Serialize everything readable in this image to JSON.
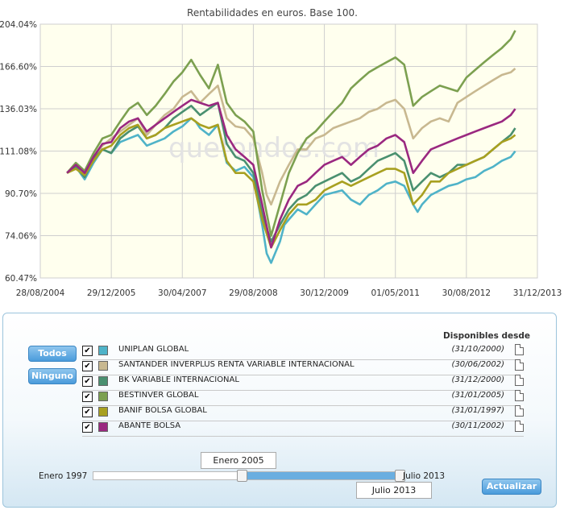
{
  "chart_data": {
    "type": "line",
    "title": "Rentabilidades en euros. Base 100.",
    "watermark": "quefondos.com",
    "xlabel": "",
    "ylabel": "",
    "x_ticks": [
      "28/08/2004",
      "29/12/2005",
      "30/04/2007",
      "29/08/2008",
      "30/12/2009",
      "01/05/2011",
      "30/08/2012",
      "31/12/2013"
    ],
    "x_tick_positions": [
      0,
      16,
      32,
      48,
      64,
      80,
      96,
      112
    ],
    "y_ticks": [
      "60.47%",
      "74.06%",
      "90.70%",
      "111.08%",
      "136.03%",
      "166.60%",
      "204.04%"
    ],
    "ylim": [
      60.47,
      204.04
    ],
    "y_scale": "log",
    "xlim": [
      0,
      112
    ],
    "x_unit": "months since 28/08/2004",
    "grid": true,
    "background": "#ffffee",
    "series": [
      {
        "name": "UNIPLAN GLOBAL",
        "color": "#4fb3c8",
        "x": [
          6,
          8,
          10,
          12,
          14,
          16,
          18,
          20,
          22,
          24,
          26,
          28,
          30,
          32,
          34,
          35,
          36,
          38,
          40,
          42,
          44,
          46,
          48,
          50,
          51,
          52,
          54,
          55,
          56,
          58,
          60,
          62,
          64,
          66,
          68,
          70,
          72,
          74,
          76,
          78,
          80,
          82,
          84,
          85,
          86,
          88,
          90,
          92,
          94,
          96,
          98,
          100,
          102,
          104,
          106,
          107
        ],
        "values": [
          100,
          103,
          97,
          105,
          112,
          110,
          116,
          118,
          120,
          114,
          116,
          118,
          122,
          125,
          130,
          128,
          124,
          120,
          126,
          105,
          101,
          103,
          98,
          78,
          68,
          65,
          72,
          78,
          80,
          84,
          82,
          86,
          90,
          91,
          92,
          88,
          86,
          90,
          92,
          95,
          96,
          94,
          86,
          83,
          86,
          90,
          92,
          94,
          95,
          97,
          98,
          101,
          103,
          106,
          108,
          111
        ]
      },
      {
        "name": "SANTANDER INVERPLUS RENTA VARIABLE INTERNACIONAL",
        "color": "#c8b890",
        "x": [
          6,
          8,
          10,
          12,
          14,
          16,
          18,
          20,
          22,
          24,
          26,
          28,
          30,
          32,
          34,
          36,
          38,
          40,
          42,
          44,
          46,
          48,
          50,
          51,
          52,
          54,
          56,
          58,
          60,
          62,
          64,
          66,
          68,
          70,
          72,
          74,
          76,
          78,
          80,
          82,
          84,
          86,
          88,
          90,
          92,
          94,
          96,
          98,
          100,
          102,
          104,
          106,
          107
        ],
        "values": [
          100,
          104,
          100,
          108,
          114,
          118,
          122,
          126,
          130,
          120,
          126,
          132,
          136,
          144,
          148,
          140,
          146,
          152,
          130,
          125,
          124,
          118,
          100,
          90,
          86,
          96,
          104,
          112,
          112,
          118,
          120,
          124,
          126,
          128,
          130,
          134,
          136,
          140,
          142,
          136,
          118,
          124,
          128,
          130,
          128,
          140,
          144,
          148,
          152,
          156,
          160,
          162,
          165
        ]
      },
      {
        "name": "BK VARIABLE INTERNACIONAL",
        "color": "#4a9070",
        "x": [
          6,
          8,
          10,
          12,
          14,
          16,
          18,
          20,
          22,
          24,
          26,
          28,
          30,
          32,
          34,
          36,
          38,
          40,
          42,
          44,
          46,
          48,
          50,
          52,
          54,
          56,
          58,
          60,
          62,
          64,
          66,
          68,
          70,
          72,
          74,
          76,
          78,
          80,
          82,
          84,
          86,
          88,
          90,
          92,
          94,
          96,
          98,
          100,
          102,
          104,
          106,
          107
        ],
        "values": [
          100,
          103,
          98,
          107,
          112,
          110,
          118,
          122,
          125,
          118,
          120,
          124,
          130,
          134,
          138,
          132,
          136,
          140,
          115,
          108,
          106,
          100,
          82,
          72,
          78,
          84,
          88,
          90,
          94,
          96,
          98,
          100,
          96,
          98,
          102,
          106,
          108,
          110,
          106,
          92,
          96,
          100,
          98,
          100,
          104,
          104,
          106,
          108,
          112,
          116,
          120,
          124
        ]
      },
      {
        "name": "BESTINVER GLOBAL",
        "color": "#7ca050",
        "x": [
          6,
          8,
          10,
          12,
          14,
          16,
          18,
          20,
          22,
          24,
          26,
          28,
          30,
          32,
          34,
          36,
          38,
          40,
          42,
          44,
          46,
          48,
          50,
          52,
          54,
          56,
          58,
          60,
          62,
          64,
          66,
          68,
          70,
          72,
          74,
          76,
          78,
          80,
          82,
          84,
          86,
          88,
          90,
          92,
          94,
          96,
          98,
          100,
          102,
          104,
          106,
          107
        ],
        "values": [
          100,
          105,
          101,
          110,
          118,
          120,
          128,
          136,
          140,
          132,
          138,
          146,
          155,
          162,
          172,
          160,
          150,
          168,
          140,
          132,
          128,
          122,
          92,
          74,
          86,
          100,
          110,
          118,
          122,
          128,
          134,
          140,
          150,
          156,
          162,
          166,
          170,
          174,
          168,
          138,
          144,
          148,
          152,
          150,
          148,
          158,
          164,
          170,
          176,
          182,
          190,
          198
        ]
      },
      {
        "name": "BANIF BOLSA GLOBAL",
        "color": "#a8a020",
        "x": [
          6,
          8,
          10,
          12,
          14,
          16,
          18,
          20,
          22,
          24,
          26,
          28,
          30,
          32,
          34,
          36,
          38,
          40,
          42,
          44,
          46,
          48,
          50,
          52,
          54,
          56,
          58,
          60,
          62,
          64,
          66,
          68,
          70,
          72,
          74,
          76,
          78,
          80,
          82,
          84,
          86,
          88,
          90,
          92,
          94,
          96,
          98,
          100,
          102,
          104,
          106,
          107
        ],
        "values": [
          100,
          102,
          99,
          106,
          112,
          114,
          120,
          124,
          126,
          118,
          120,
          124,
          126,
          128,
          130,
          126,
          124,
          126,
          106,
          100,
          100,
          96,
          80,
          70,
          76,
          82,
          86,
          86,
          88,
          92,
          94,
          96,
          94,
          96,
          98,
          100,
          102,
          102,
          100,
          86,
          90,
          96,
          96,
          100,
          102,
          104,
          106,
          108,
          112,
          116,
          118,
          120
        ]
      },
      {
        "name": "ABANTE BOLSA",
        "color": "#9a2880",
        "x": [
          6,
          8,
          10,
          12,
          14,
          16,
          18,
          20,
          22,
          24,
          26,
          28,
          30,
          32,
          34,
          36,
          38,
          40,
          42,
          44,
          46,
          48,
          50,
          52,
          54,
          56,
          58,
          60,
          62,
          64,
          66,
          68,
          70,
          72,
          74,
          76,
          78,
          80,
          82,
          84,
          86,
          88,
          90,
          92,
          94,
          96,
          98,
          100,
          102,
          104,
          106,
          107
        ],
        "values": [
          100,
          104,
          100,
          108,
          115,
          116,
          124,
          128,
          130,
          122,
          126,
          130,
          134,
          138,
          142,
          140,
          138,
          140,
          120,
          112,
          108,
          104,
          86,
          70,
          80,
          88,
          94,
          96,
          100,
          104,
          106,
          108,
          104,
          108,
          112,
          114,
          118,
          120,
          116,
          100,
          106,
          112,
          114,
          116,
          118,
          120,
          122,
          124,
          126,
          128,
          132,
          136
        ]
      }
    ]
  },
  "panel": {
    "todos_label": "Todos",
    "ninguno_label": "Ninguno",
    "actualizar_label": "Actualizar",
    "disponibles_header": "Disponibles desde",
    "check_mark": "✔",
    "funds": [
      {
        "name": "UNIPLAN GLOBAL",
        "date": "(31/10/2000)",
        "color": "#4fb3c8",
        "checked": true
      },
      {
        "name": "SANTANDER INVERPLUS RENTA VARIABLE INTERNACIONAL",
        "date": "(30/06/2002)",
        "color": "#c8b890",
        "checked": true
      },
      {
        "name": "BK VARIABLE INTERNACIONAL",
        "date": "(31/12/2000)",
        "color": "#4a9070",
        "checked": true
      },
      {
        "name": "BESTINVER GLOBAL",
        "date": "(31/01/2005)",
        "color": "#7ca050",
        "checked": true
      },
      {
        "name": "BANIF BOLSA GLOBAL",
        "date": "(31/01/1997)",
        "color": "#a8a020",
        "checked": true
      },
      {
        "name": "ABANTE BOLSA",
        "date": "(30/11/2002)",
        "color": "#9a2880",
        "checked": true
      }
    ],
    "slider": {
      "min_label": "Enero 1997",
      "max_label": "Julio 2013",
      "start_value": "Enero 2005",
      "end_value": "Julio 2013",
      "start_fraction": 0.485,
      "end_fraction": 1.0
    }
  }
}
